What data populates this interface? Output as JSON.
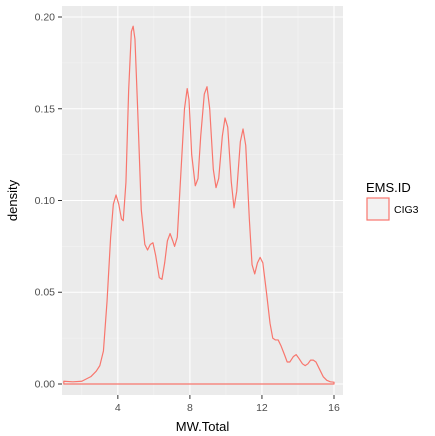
{
  "chart_data": {
    "type": "line",
    "subtype": "density",
    "xlabel": "MW.Total",
    "ylabel": "density",
    "xlim": [
      0.9,
      16.5
    ],
    "ylim": [
      -0.006,
      0.206
    ],
    "x_ticks": [
      4,
      8,
      12,
      16
    ],
    "y_ticks": [
      0.0,
      0.05,
      0.1,
      0.15,
      0.2
    ],
    "x_tick_labels": [
      "4",
      "8",
      "12",
      "16"
    ],
    "y_tick_labels": [
      "0.00",
      "0.05",
      "0.10",
      "0.15",
      "0.20"
    ],
    "grid": true,
    "background": "#EBEBEB",
    "legend": {
      "title": "EMS.ID",
      "position": "right"
    },
    "series": [
      {
        "name": "CIG3",
        "color": "#F8766D",
        "points": [
          [
            1.0,
            0.0015
          ],
          [
            1.5,
            0.0012
          ],
          [
            2.0,
            0.0015
          ],
          [
            2.5,
            0.004
          ],
          [
            2.8,
            0.007
          ],
          [
            3.0,
            0.01
          ],
          [
            3.2,
            0.018
          ],
          [
            3.4,
            0.045
          ],
          [
            3.6,
            0.08
          ],
          [
            3.75,
            0.098
          ],
          [
            3.9,
            0.103
          ],
          [
            4.05,
            0.098
          ],
          [
            4.2,
            0.09
          ],
          [
            4.3,
            0.089
          ],
          [
            4.45,
            0.11
          ],
          [
            4.6,
            0.16
          ],
          [
            4.75,
            0.192
          ],
          [
            4.85,
            0.195
          ],
          [
            4.95,
            0.188
          ],
          [
            5.1,
            0.15
          ],
          [
            5.3,
            0.095
          ],
          [
            5.5,
            0.076
          ],
          [
            5.65,
            0.073
          ],
          [
            5.8,
            0.076
          ],
          [
            5.95,
            0.077
          ],
          [
            6.1,
            0.07
          ],
          [
            6.3,
            0.058
          ],
          [
            6.45,
            0.057
          ],
          [
            6.6,
            0.066
          ],
          [
            6.75,
            0.078
          ],
          [
            6.9,
            0.082
          ],
          [
            7.05,
            0.078
          ],
          [
            7.15,
            0.075
          ],
          [
            7.3,
            0.08
          ],
          [
            7.5,
            0.115
          ],
          [
            7.7,
            0.15
          ],
          [
            7.85,
            0.161
          ],
          [
            7.95,
            0.155
          ],
          [
            8.1,
            0.125
          ],
          [
            8.3,
            0.108
          ],
          [
            8.45,
            0.112
          ],
          [
            8.6,
            0.135
          ],
          [
            8.8,
            0.158
          ],
          [
            8.95,
            0.162
          ],
          [
            9.1,
            0.15
          ],
          [
            9.3,
            0.117
          ],
          [
            9.45,
            0.107
          ],
          [
            9.6,
            0.112
          ],
          [
            9.8,
            0.135
          ],
          [
            9.95,
            0.145
          ],
          [
            10.1,
            0.14
          ],
          [
            10.3,
            0.11
          ],
          [
            10.45,
            0.096
          ],
          [
            10.6,
            0.105
          ],
          [
            10.8,
            0.132
          ],
          [
            10.95,
            0.139
          ],
          [
            11.1,
            0.13
          ],
          [
            11.3,
            0.09
          ],
          [
            11.45,
            0.065
          ],
          [
            11.6,
            0.06
          ],
          [
            11.75,
            0.066
          ],
          [
            11.9,
            0.069
          ],
          [
            12.05,
            0.066
          ],
          [
            12.25,
            0.05
          ],
          [
            12.45,
            0.033
          ],
          [
            12.6,
            0.025
          ],
          [
            12.75,
            0.024
          ],
          [
            12.9,
            0.024
          ],
          [
            13.05,
            0.021
          ],
          [
            13.25,
            0.016
          ],
          [
            13.4,
            0.012
          ],
          [
            13.55,
            0.012
          ],
          [
            13.75,
            0.015
          ],
          [
            13.9,
            0.016
          ],
          [
            14.05,
            0.014
          ],
          [
            14.25,
            0.011
          ],
          [
            14.4,
            0.01
          ],
          [
            14.55,
            0.011
          ],
          [
            14.7,
            0.013
          ],
          [
            14.85,
            0.013
          ],
          [
            15.0,
            0.012
          ],
          [
            15.2,
            0.008
          ],
          [
            15.4,
            0.004
          ],
          [
            15.6,
            0.002
          ],
          [
            15.8,
            0.0012
          ],
          [
            16.0,
            0.001
          ]
        ]
      }
    ]
  }
}
